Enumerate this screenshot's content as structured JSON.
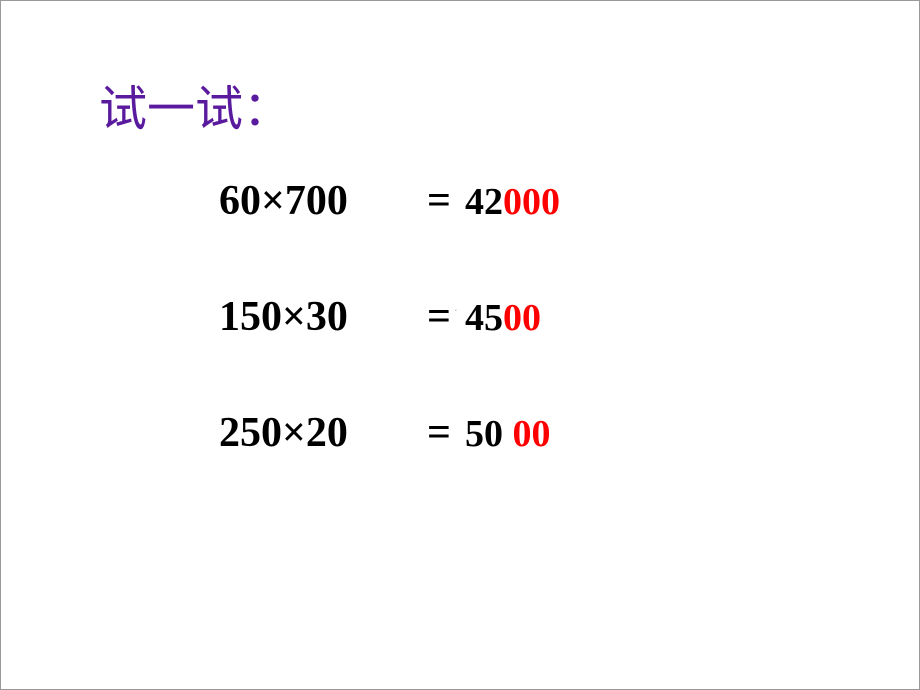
{
  "heading": {
    "text": "试一试：",
    "color": "#5a1a9e",
    "fontsize": 48
  },
  "watermark": {
    "text": "."
  },
  "problems": [
    {
      "expression": "60×700",
      "equals": "=",
      "result_black": "42",
      "result_red": "000"
    },
    {
      "expression": "150×30",
      "equals": "=",
      "result_black": "45",
      "result_red": "00"
    },
    {
      "expression": "250×20",
      "equals": "=",
      "result_black": "50 ",
      "result_red": "00"
    }
  ],
  "colors": {
    "background": "#ffffff",
    "heading": "#5a1a9e",
    "expression": "#000000",
    "result_black": "#000000",
    "result_red": "#ff0000"
  },
  "typography": {
    "heading_font": "KaiTi",
    "body_font": "Times New Roman",
    "expression_fontsize": 42,
    "result_fontsize": 38,
    "weight": "bold"
  }
}
